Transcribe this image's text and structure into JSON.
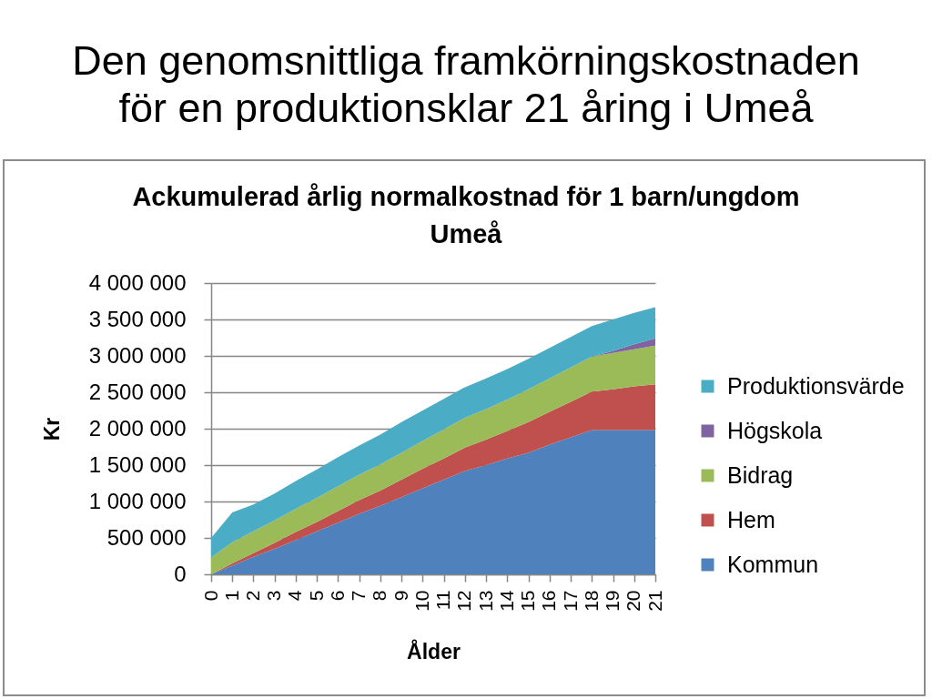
{
  "chart_data": {
    "type": "area",
    "title": "Den genomsnittliga framkörningskostnaden för en produktionsklar 21 åring i Umeå",
    "subtitle": "Ackumulerad årlig normalkostnad för 1 barn/ungdom Umeå",
    "xlabel": "Ålder",
    "ylabel": "Kr",
    "categories": [
      "0",
      "1",
      "2",
      "3",
      "4",
      "5",
      "6",
      "7",
      "8",
      "9",
      "10",
      "11",
      "12",
      "13",
      "14",
      "15",
      "16",
      "17",
      "18",
      "19",
      "20",
      "21"
    ],
    "series": [
      {
        "name": "Kommun",
        "color": "#4f81bd",
        "values": [
          0,
          120000,
          240000,
          350000,
          470000,
          590000,
          710000,
          830000,
          940000,
          1060000,
          1180000,
          1300000,
          1420000,
          1500000,
          1590000,
          1670000,
          1780000,
          1880000,
          1980000,
          1980000,
          1980000,
          1980000
        ]
      },
      {
        "name": "Hem",
        "color": "#c0504d",
        "values": [
          0,
          30000,
          50000,
          80000,
          110000,
          130000,
          160000,
          190000,
          210000,
          240000,
          270000,
          290000,
          320000,
          350000,
          380000,
          420000,
          450000,
          490000,
          530000,
          560000,
          600000,
          630000
        ]
      },
      {
        "name": "Bidrag",
        "color": "#9bbb59",
        "values": [
          230000,
          290000,
          300000,
          310000,
          320000,
          330000,
          340000,
          350000,
          360000,
          370000,
          380000,
          400000,
          410000,
          420000,
          430000,
          450000,
          460000,
          470000,
          480000,
          500000,
          510000,
          530000
        ]
      },
      {
        "name": "Högskola",
        "color": "#8064a2",
        "values": [
          0,
          0,
          0,
          0,
          0,
          0,
          0,
          0,
          0,
          0,
          0,
          0,
          0,
          0,
          0,
          0,
          0,
          0,
          0,
          30000,
          70000,
          100000
        ]
      },
      {
        "name": "Produktionsvärde",
        "color": "#4bacc6",
        "values": [
          270000,
          410000,
          370000,
          370000,
          380000,
          390000,
          400000,
          400000,
          410000,
          420000,
          420000,
          420000,
          420000,
          420000,
          420000,
          420000,
          420000,
          420000,
          420000,
          430000,
          430000,
          430000
        ]
      }
    ],
    "stacked": true,
    "ylim": [
      0,
      4000000
    ],
    "yticks": [
      0,
      {
        "value": 500000,
        "label": "500 000"
      },
      {
        "value": 1000000,
        "label": "1 000 000"
      },
      {
        "value": 1500000,
        "label": "1 500 000"
      },
      {
        "value": 2000000,
        "label": "2 000 000"
      },
      {
        "value": 2500000,
        "label": "2 500 000"
      },
      {
        "value": 3000000,
        "label": "3 000 000"
      },
      {
        "value": 3500000,
        "label": "3 500 000"
      },
      {
        "value": 4000000,
        "label": "4 000 000"
      }
    ],
    "grid": "y",
    "legend": "right"
  }
}
